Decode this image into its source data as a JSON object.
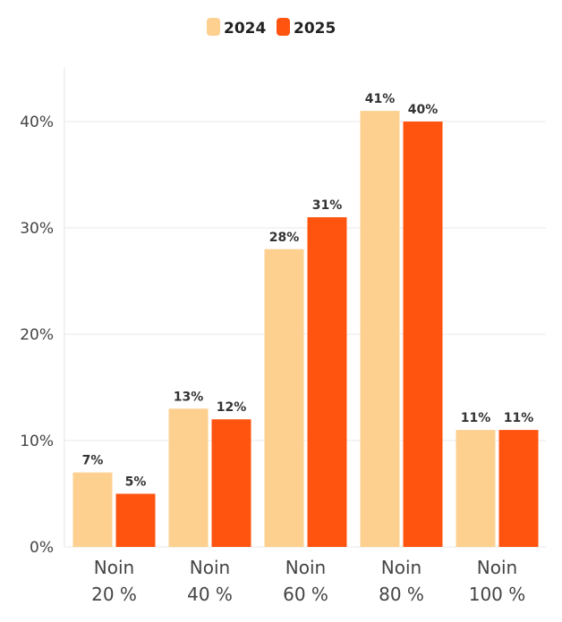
{
  "chart_data": {
    "type": "bar",
    "categories": [
      [
        "Noin",
        "20 %"
      ],
      [
        "Noin",
        "40 %"
      ],
      [
        "Noin",
        "60 %"
      ],
      [
        "Noin",
        "80 %"
      ],
      [
        "Noin",
        "100 %"
      ]
    ],
    "series": [
      {
        "name": "2024",
        "values": [
          7,
          13,
          28,
          41,
          11
        ],
        "labels": [
          "7%",
          "13%",
          "28%",
          "41%",
          "11%"
        ],
        "color": "#FDD090"
      },
      {
        "name": "2025",
        "values": [
          5,
          12,
          31,
          40,
          11
        ],
        "labels": [
          "5%",
          "12%",
          "31%",
          "40%",
          "11%"
        ],
        "color": "#FF5410"
      }
    ],
    "yticks": [
      0,
      10,
      20,
      30,
      40
    ],
    "ytick_labels": [
      "0%",
      "10%",
      "20%",
      "30%",
      "40%"
    ],
    "ylim": [
      0,
      45
    ],
    "grid": true,
    "legend_position": "top-center",
    "title": "",
    "xlabel": "",
    "ylabel": ""
  }
}
